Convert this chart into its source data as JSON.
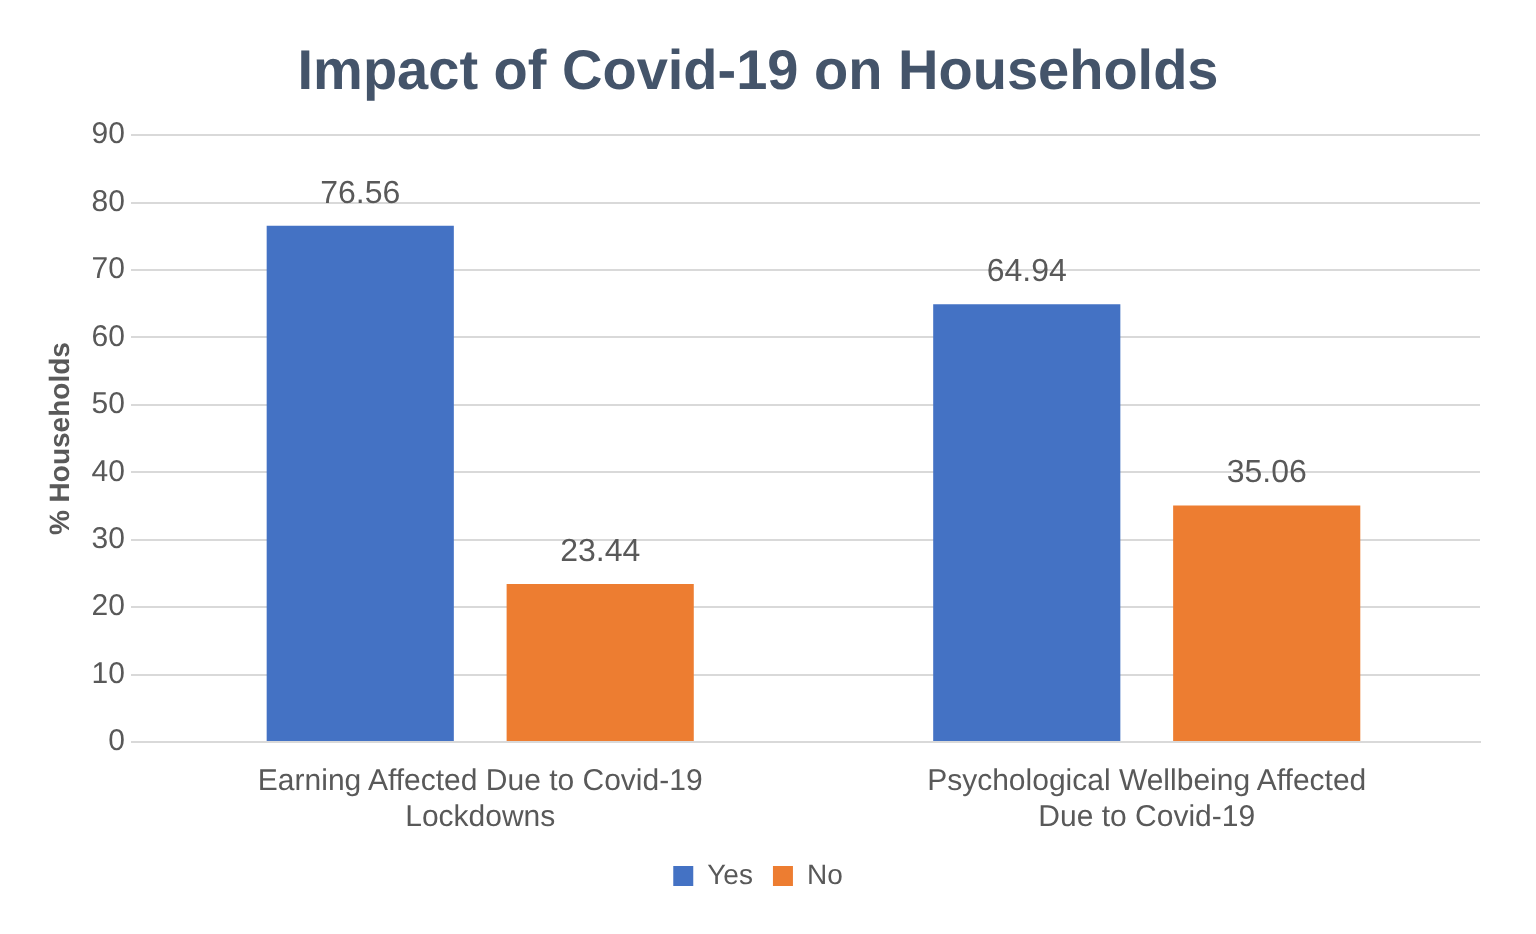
{
  "chart_data": {
    "type": "bar",
    "title": "Impact of Covid-19 on Households",
    "ylabel": "% Households",
    "categories": [
      "Earning Affected Due to Covid-19 Lockdowns",
      "Psychological Wellbeing Affected Due to Covid-19"
    ],
    "series": [
      {
        "name": "Yes",
        "color": "#4472c4",
        "values": [
          76.56,
          64.94
        ]
      },
      {
        "name": "No",
        "color": "#ed7d31",
        "values": [
          23.44,
          35.06
        ]
      }
    ],
    "ylim": [
      0,
      90
    ],
    "yticks": [
      0,
      10,
      20,
      30,
      40,
      50,
      60,
      70,
      80,
      90
    ],
    "grid": "y",
    "legend": "bottom",
    "data_labels": true
  }
}
